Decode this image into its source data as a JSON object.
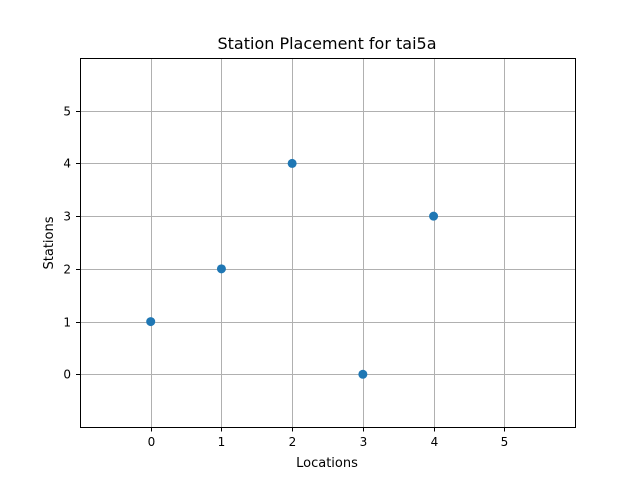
{
  "chart_data": {
    "type": "scatter",
    "title": "Station Placement for tai5a",
    "xlabel": "Locations",
    "ylabel": "Stations",
    "xlim": [
      -1,
      6
    ],
    "ylim": [
      -1,
      6
    ],
    "xticks": [
      0,
      1,
      2,
      3,
      4,
      5
    ],
    "yticks": [
      0,
      1,
      2,
      3,
      4,
      5
    ],
    "grid": true,
    "series": [
      {
        "points": [
          {
            "x": 0,
            "y": 1
          },
          {
            "x": 1,
            "y": 2
          },
          {
            "x": 2,
            "y": 4
          },
          {
            "x": 3,
            "y": 0
          },
          {
            "x": 4,
            "y": 3
          }
        ]
      }
    ],
    "colors": {
      "marker": "#1f77b4",
      "grid": "#b0b0b0"
    }
  }
}
